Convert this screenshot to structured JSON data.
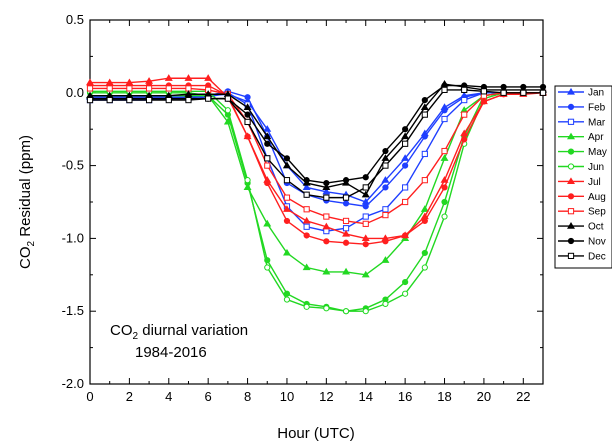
{
  "chart_data": {
    "type": "line",
    "xlabel": "Hour (UTC)",
    "ylabel_main": "CO",
    "ylabel_sub": "2",
    "ylabel_rest": " Residual (ppm)",
    "annotation_line1_main": "CO",
    "annotation_line1_sub": "2",
    "annotation_line1_rest": " diurnal variation",
    "annotation_line2": "1984-2016",
    "xlim": [
      0,
      23
    ],
    "ylim": [
      -2.0,
      0.5
    ],
    "xticks": [
      0,
      2,
      4,
      6,
      8,
      10,
      12,
      14,
      16,
      18,
      20,
      22
    ],
    "xtick_labels": [
      "0",
      "2",
      "4",
      "6",
      "8",
      "10",
      "12",
      "14",
      "16",
      "18",
      "20",
      "22"
    ],
    "yticks": [
      0.5,
      0.0,
      -0.5,
      -1.0,
      -1.5,
      -2.0
    ],
    "ytick_labels": [
      "0.5",
      "0.0",
      "-0.5",
      "-1.0",
      "-1.5",
      "-2.0"
    ],
    "legend_position": "right, outside plot",
    "x": [
      0,
      1,
      2,
      3,
      4,
      5,
      6,
      7,
      8,
      9,
      10,
      11,
      12,
      13,
      14,
      15,
      16,
      17,
      18,
      19,
      20,
      21,
      22,
      23
    ],
    "series": [
      {
        "name": "Jan",
        "color": "#1f3fff",
        "marker": "triangle",
        "fill": "filled",
        "values": [
          -0.03,
          -0.03,
          -0.03,
          -0.03,
          -0.03,
          -0.03,
          -0.02,
          -0.01,
          -0.06,
          -0.25,
          -0.5,
          -0.65,
          -0.68,
          -0.7,
          -0.75,
          -0.6,
          -0.45,
          -0.28,
          -0.1,
          -0.02,
          0.0,
          0.0,
          0.0,
          0.0
        ]
      },
      {
        "name": "Feb",
        "color": "#1f3fff",
        "marker": "circle",
        "fill": "filled",
        "values": [
          -0.04,
          -0.04,
          -0.04,
          -0.04,
          -0.04,
          -0.03,
          -0.02,
          0.01,
          -0.03,
          -0.3,
          -0.62,
          -0.7,
          -0.74,
          -0.76,
          -0.78,
          -0.65,
          -0.5,
          -0.3,
          -0.12,
          -0.03,
          0.0,
          0.0,
          0.0,
          0.0
        ]
      },
      {
        "name": "Mar",
        "color": "#1f3fff",
        "marker": "square",
        "fill": "open",
        "values": [
          -0.05,
          -0.05,
          -0.05,
          -0.05,
          -0.04,
          -0.04,
          -0.03,
          0.0,
          -0.08,
          -0.45,
          -0.78,
          -0.92,
          -0.95,
          -0.93,
          -0.85,
          -0.8,
          -0.65,
          -0.42,
          -0.18,
          -0.05,
          0.0,
          0.0,
          0.0,
          0.0
        ]
      },
      {
        "name": "Apr",
        "color": "#22d822",
        "marker": "triangle",
        "fill": "filled",
        "values": [
          -0.02,
          -0.02,
          -0.02,
          -0.02,
          -0.02,
          -0.02,
          -0.02,
          -0.2,
          -0.65,
          -0.9,
          -1.1,
          -1.2,
          -1.23,
          -1.23,
          -1.25,
          -1.15,
          -1.0,
          -0.8,
          -0.45,
          -0.12,
          -0.02,
          0.0,
          0.0,
          0.0
        ]
      },
      {
        "name": "May",
        "color": "#22d822",
        "marker": "circle",
        "fill": "filled",
        "values": [
          0.0,
          0.0,
          0.0,
          0.0,
          0.0,
          0.0,
          -0.02,
          -0.15,
          -0.62,
          -1.15,
          -1.38,
          -1.45,
          -1.47,
          -1.5,
          -1.48,
          -1.42,
          -1.3,
          -1.1,
          -0.75,
          -0.3,
          -0.02,
          0.0,
          0.0,
          0.0
        ]
      },
      {
        "name": "Jun",
        "color": "#22d822",
        "marker": "circle",
        "fill": "open",
        "values": [
          0.01,
          0.01,
          0.01,
          0.01,
          0.01,
          0.01,
          0.01,
          -0.12,
          -0.6,
          -1.2,
          -1.42,
          -1.47,
          -1.48,
          -1.5,
          -1.5,
          -1.45,
          -1.38,
          -1.2,
          -0.85,
          -0.35,
          -0.04,
          0.0,
          0.0,
          0.0
        ]
      },
      {
        "name": "Jul",
        "color": "#ff1f1f",
        "marker": "triangle",
        "fill": "filled",
        "values": [
          0.07,
          0.07,
          0.07,
          0.08,
          0.1,
          0.1,
          0.1,
          -0.03,
          -0.3,
          -0.6,
          -0.8,
          -0.88,
          -0.92,
          -0.97,
          -1.0,
          -1.0,
          -0.98,
          -0.85,
          -0.6,
          -0.28,
          -0.06,
          -0.01,
          -0.01,
          0.0
        ]
      },
      {
        "name": "Aug",
        "color": "#ff1f1f",
        "marker": "circle",
        "fill": "filled",
        "values": [
          0.05,
          0.05,
          0.05,
          0.05,
          0.05,
          0.05,
          0.05,
          -0.02,
          -0.3,
          -0.62,
          -0.88,
          -0.98,
          -1.02,
          -1.03,
          -1.04,
          -1.02,
          -0.98,
          -0.88,
          -0.65,
          -0.32,
          -0.06,
          -0.01,
          0.0,
          0.0
        ]
      },
      {
        "name": "Sep",
        "color": "#ff1f1f",
        "marker": "square",
        "fill": "open",
        "values": [
          0.03,
          0.03,
          0.03,
          0.03,
          0.03,
          0.03,
          0.02,
          -0.01,
          -0.2,
          -0.5,
          -0.72,
          -0.8,
          -0.85,
          -0.88,
          -0.9,
          -0.84,
          -0.75,
          -0.6,
          -0.4,
          -0.15,
          -0.02,
          0.0,
          0.0,
          0.0
        ]
      },
      {
        "name": "Oct",
        "color": "#000000",
        "marker": "triangle",
        "fill": "filled",
        "values": [
          -0.02,
          -0.02,
          -0.02,
          -0.02,
          -0.02,
          -0.01,
          -0.01,
          -0.01,
          -0.1,
          -0.3,
          -0.5,
          -0.62,
          -0.65,
          -0.62,
          -0.7,
          -0.45,
          -0.3,
          -0.1,
          0.06,
          0.04,
          0.02,
          0.02,
          0.02,
          0.02
        ]
      },
      {
        "name": "Nov",
        "color": "#000000",
        "marker": "circle",
        "fill": "filled",
        "values": [
          -0.04,
          -0.04,
          -0.04,
          -0.04,
          -0.04,
          -0.04,
          -0.04,
          -0.04,
          -0.15,
          -0.35,
          -0.45,
          -0.6,
          -0.62,
          -0.6,
          -0.58,
          -0.4,
          -0.25,
          -0.05,
          0.05,
          0.05,
          0.04,
          0.04,
          0.04,
          0.04
        ]
      },
      {
        "name": "Dec",
        "color": "#000000",
        "marker": "square",
        "fill": "open",
        "values": [
          -0.05,
          -0.05,
          -0.05,
          -0.05,
          -0.05,
          -0.05,
          -0.04,
          -0.04,
          -0.2,
          -0.45,
          -0.6,
          -0.7,
          -0.72,
          -0.72,
          -0.65,
          -0.5,
          -0.35,
          -0.15,
          0.02,
          0.02,
          0.01,
          0.0,
          0.0,
          0.0
        ]
      }
    ]
  }
}
